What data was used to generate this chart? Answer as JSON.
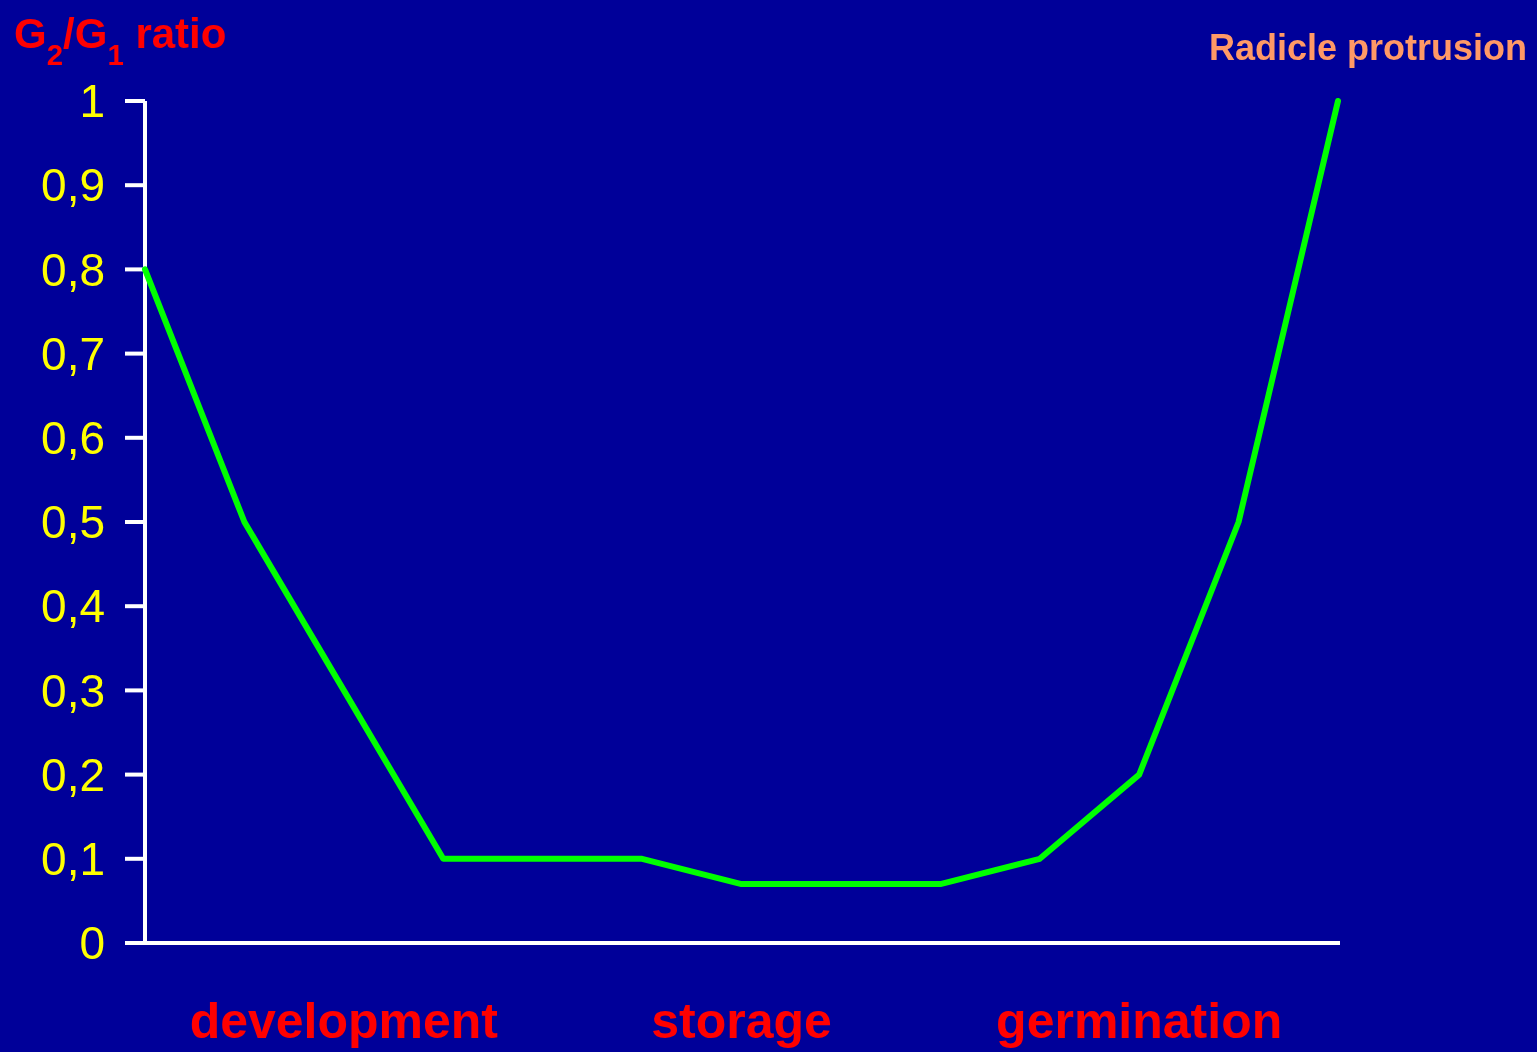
{
  "chart_data": {
    "type": "line",
    "ylabel": "G$_{2}$/G$_{1}$ ratio",
    "categories": [
      null,
      null,
      "development",
      null,
      null,
      null,
      "storage",
      null,
      null,
      null,
      "germination",
      null,
      null
    ],
    "series": [
      {
        "color": "#00ff00",
        "values": [
          0.8,
          0.5,
          0.3,
          0.1,
          0.1,
          0.1,
          0.07,
          0.07,
          0.07,
          0.1,
          0.2,
          0.5,
          1
        ]
      }
    ],
    "ylim": [
      0,
      1
    ],
    "yticks": [
      0,
      {
        "value": 0.1,
        "label": "0,1"
      },
      {
        "value": 0.2,
        "label": "0,2"
      },
      {
        "value": 0.3,
        "label": "0,3"
      },
      {
        "value": 0.4,
        "label": "0,4"
      },
      {
        "value": 0.5,
        "label": "0,5"
      },
      {
        "value": 0.6,
        "label": "0,6"
      },
      {
        "value": 0.7,
        "label": "0,7"
      },
      {
        "value": 0.8,
        "label": "0,8"
      },
      {
        "value": 0.9,
        "label": "0,9"
      },
      1
    ],
    "annotations": [
      "Radicle protrusion"
    ],
    "marker": "none",
    "line_style": "solid"
  }
}
